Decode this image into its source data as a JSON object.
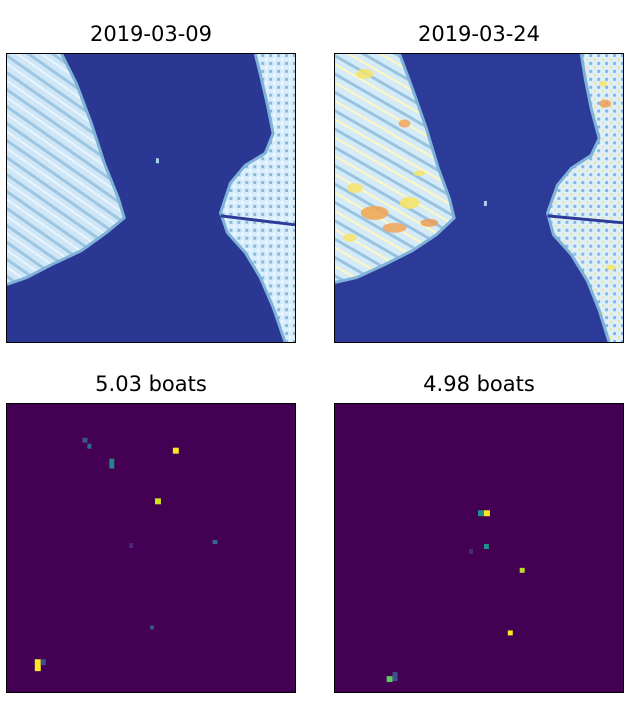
{
  "panels": [
    {
      "title": "2019-03-09",
      "kind": "satellite-image"
    },
    {
      "title": "2019-03-24",
      "kind": "satellite-image"
    },
    {
      "title": "5.03 boats",
      "kind": "density-map"
    },
    {
      "title": "4.98 boats",
      "kind": "density-map"
    }
  ],
  "colors": {
    "water": "#2b3a96",
    "land_light": "#dcefff",
    "land_mid": "#8fbedc",
    "hot_yellow": "#f5e86a",
    "hot_orange": "#f0a050",
    "density_bg": "#440154",
    "density_yellow": "#fde725",
    "density_teal": "#21918c",
    "density_green": "#5ec962",
    "density_blue": "#3b528b"
  }
}
